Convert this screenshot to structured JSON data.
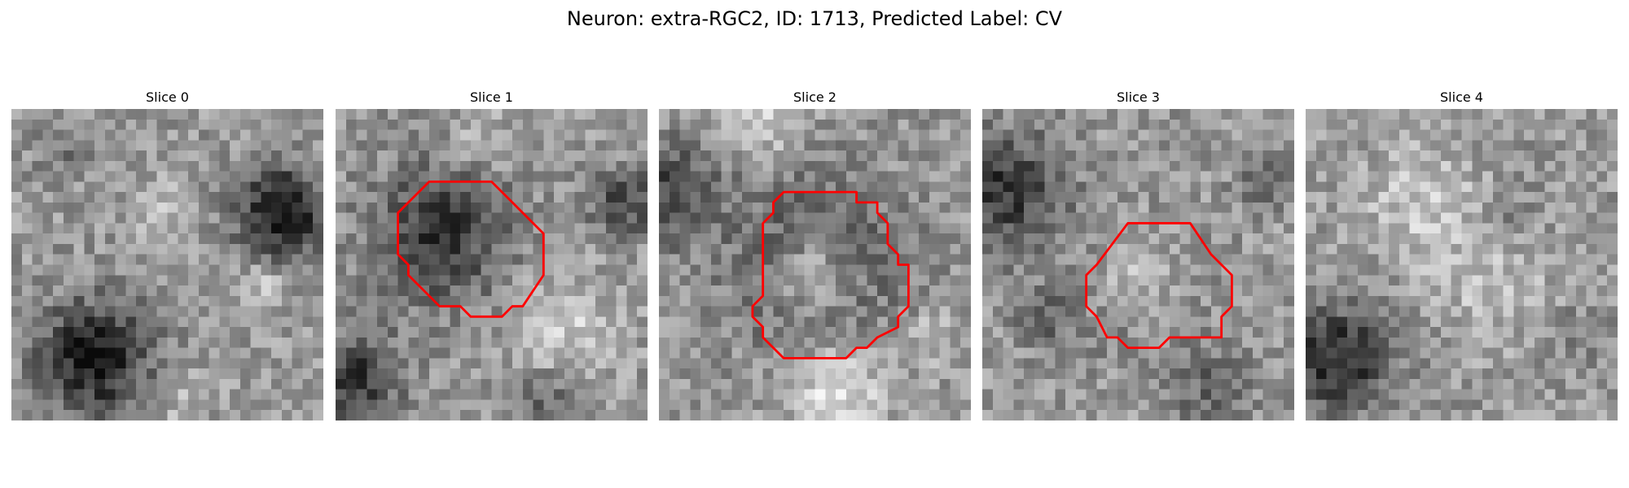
{
  "figure": {
    "title": "Neuron: extra-RGC2, ID: 1713, Predicted Label: CV"
  },
  "panels": [
    {
      "title": "Slice 0",
      "has_contour": false
    },
    {
      "title": "Slice 1",
      "has_contour": true
    },
    {
      "title": "Slice 2",
      "has_contour": true
    },
    {
      "title": "Slice 3",
      "has_contour": true
    },
    {
      "title": "Slice 4",
      "has_contour": false
    }
  ],
  "colors": {
    "background": "#ffffff",
    "contour": "#ff0000",
    "colormap": "grayscale"
  }
}
